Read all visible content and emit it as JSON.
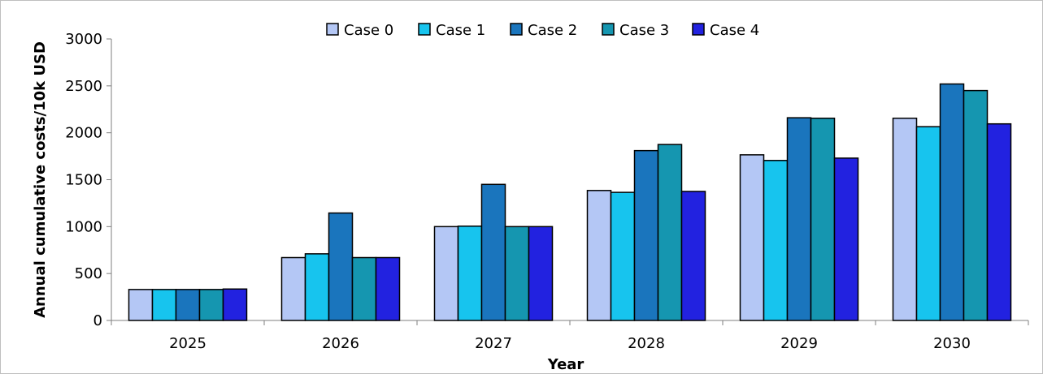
{
  "chart_data": {
    "type": "bar",
    "title": "",
    "xlabel": "Year",
    "ylabel": "Annual cumulative costs/10k USD",
    "categories": [
      "2025",
      "2026",
      "2027",
      "2028",
      "2029",
      "2030"
    ],
    "ylim": [
      0,
      3000
    ],
    "yticks": [
      0,
      500,
      1000,
      1500,
      2000,
      2500,
      3000
    ],
    "grid": false,
    "legend_position": "top",
    "series": [
      {
        "name": "Case 0",
        "color": "#b4c7f5",
        "values": [
          330,
          670,
          1000,
          1385,
          1765,
          2155
        ]
      },
      {
        "name": "Case 1",
        "color": "#17c4ee",
        "values": [
          330,
          710,
          1005,
          1365,
          1705,
          2065
        ]
      },
      {
        "name": "Case 2",
        "color": "#1a75bd",
        "values": [
          330,
          1145,
          1450,
          1810,
          2160,
          2520
        ]
      },
      {
        "name": "Case 3",
        "color": "#1596b0",
        "values": [
          330,
          670,
          1000,
          1875,
          2155,
          2450
        ]
      },
      {
        "name": "Case 4",
        "color": "#2222e0",
        "values": [
          335,
          670,
          1000,
          1375,
          1730,
          2095
        ]
      }
    ]
  }
}
